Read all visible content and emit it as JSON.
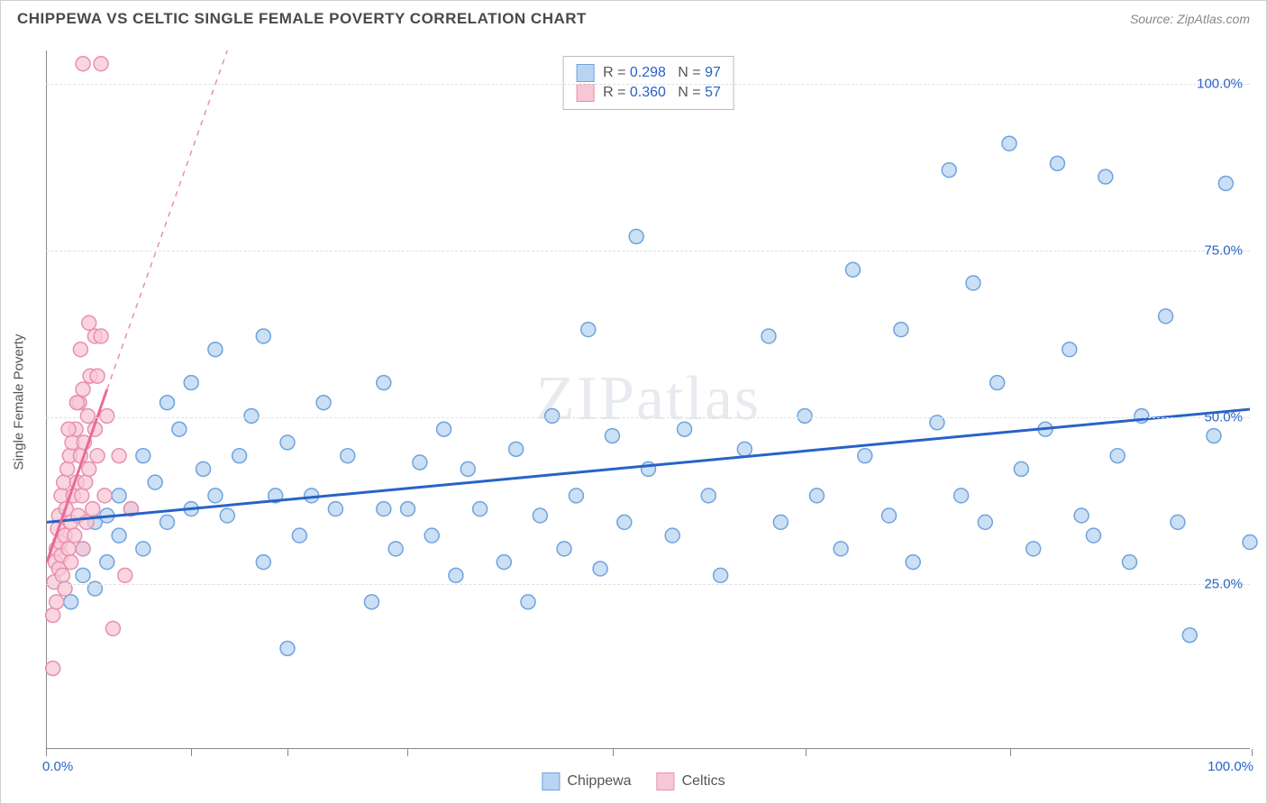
{
  "header": {
    "title": "CHIPPEWA VS CELTIC SINGLE FEMALE POVERTY CORRELATION CHART",
    "source": "Source: ZipAtlas.com"
  },
  "chart": {
    "type": "scatter",
    "y_axis_label": "Single Female Poverty",
    "watermark": "ZIPatlas",
    "xlim": [
      0,
      100
    ],
    "ylim": [
      0,
      105
    ],
    "x_tick_positions": [
      0,
      12,
      20,
      30,
      47,
      63,
      80,
      100
    ],
    "x_label_start": "0.0%",
    "x_label_end": "100.0%",
    "x_label_color": "#2862c7",
    "y_gridlines": [
      {
        "value": 25,
        "label": "25.0%"
      },
      {
        "value": 50,
        "label": "50.0%"
      },
      {
        "value": 75,
        "label": "75.0%"
      },
      {
        "value": 100,
        "label": "100.0%"
      }
    ],
    "y_label_color": "#2862c7",
    "grid_color": "#e0e0e0",
    "background_color": "#ffffff",
    "axis_color": "#888888",
    "marker_radius": 8,
    "marker_stroke_width": 1.5,
    "series": [
      {
        "name": "Chippewa",
        "fill": "#b9d4f2",
        "stroke": "#6fa3dc",
        "swatch_fill": "#b9d4f2",
        "swatch_stroke": "#6fa3dc",
        "r_value": "0.298",
        "n_value": "97",
        "trend": {
          "x1": 0,
          "y1": 34,
          "x2": 100,
          "y2": 51,
          "stroke": "#2862c7",
          "width": 3,
          "dash": "none",
          "extend_dash": null
        },
        "points": [
          [
            2,
            22
          ],
          [
            3,
            26
          ],
          [
            3,
            30
          ],
          [
            4,
            24
          ],
          [
            4,
            34
          ],
          [
            5,
            28
          ],
          [
            5,
            35
          ],
          [
            6,
            32
          ],
          [
            6,
            38
          ],
          [
            7,
            36
          ],
          [
            8,
            30
          ],
          [
            8,
            44
          ],
          [
            9,
            40
          ],
          [
            10,
            34
          ],
          [
            10,
            52
          ],
          [
            11,
            48
          ],
          [
            12,
            36
          ],
          [
            12,
            55
          ],
          [
            13,
            42
          ],
          [
            14,
            38
          ],
          [
            14,
            60
          ],
          [
            15,
            35
          ],
          [
            16,
            44
          ],
          [
            17,
            50
          ],
          [
            18,
            28
          ],
          [
            18,
            62
          ],
          [
            19,
            38
          ],
          [
            20,
            15
          ],
          [
            20,
            46
          ],
          [
            21,
            32
          ],
          [
            22,
            38
          ],
          [
            23,
            52
          ],
          [
            24,
            36
          ],
          [
            25,
            44
          ],
          [
            27,
            22
          ],
          [
            28,
            36
          ],
          [
            28,
            55
          ],
          [
            29,
            30
          ],
          [
            30,
            36
          ],
          [
            31,
            43
          ],
          [
            32,
            32
          ],
          [
            33,
            48
          ],
          [
            34,
            26
          ],
          [
            35,
            42
          ],
          [
            36,
            36
          ],
          [
            38,
            28
          ],
          [
            39,
            45
          ],
          [
            40,
            22
          ],
          [
            41,
            35
          ],
          [
            42,
            50
          ],
          [
            43,
            30
          ],
          [
            44,
            38
          ],
          [
            45,
            63
          ],
          [
            46,
            27
          ],
          [
            47,
            47
          ],
          [
            48,
            34
          ],
          [
            49,
            77
          ],
          [
            50,
            42
          ],
          [
            52,
            32
          ],
          [
            53,
            48
          ],
          [
            55,
            38
          ],
          [
            56,
            26
          ],
          [
            58,
            45
          ],
          [
            60,
            62
          ],
          [
            61,
            34
          ],
          [
            63,
            50
          ],
          [
            64,
            38
          ],
          [
            66,
            30
          ],
          [
            67,
            72
          ],
          [
            68,
            44
          ],
          [
            70,
            35
          ],
          [
            71,
            63
          ],
          [
            72,
            28
          ],
          [
            74,
            49
          ],
          [
            75,
            87
          ],
          [
            76,
            38
          ],
          [
            77,
            70
          ],
          [
            78,
            34
          ],
          [
            79,
            55
          ],
          [
            80,
            91
          ],
          [
            81,
            42
          ],
          [
            82,
            30
          ],
          [
            83,
            48
          ],
          [
            84,
            88
          ],
          [
            85,
            60
          ],
          [
            86,
            35
          ],
          [
            87,
            32
          ],
          [
            88,
            86
          ],
          [
            89,
            44
          ],
          [
            90,
            28
          ],
          [
            91,
            50
          ],
          [
            93,
            65
          ],
          [
            94,
            34
          ],
          [
            95,
            17
          ],
          [
            97,
            47
          ],
          [
            98,
            85
          ],
          [
            100,
            31
          ]
        ]
      },
      {
        "name": "Celtics",
        "fill": "#f7c7d6",
        "stroke": "#e88fb0",
        "swatch_fill": "#f7c7d6",
        "swatch_stroke": "#e88fb0",
        "r_value": "0.360",
        "n_value": "57",
        "trend": {
          "x1": 0,
          "y1": 28,
          "x2": 5,
          "y2": 54,
          "stroke": "#e86a9a",
          "width": 3,
          "dash": "none",
          "extend_dash": {
            "x1": 5,
            "y1": 54,
            "x2": 15,
            "y2": 105,
            "stroke": "#e88fb0",
            "width": 1.5
          }
        },
        "points": [
          [
            0.5,
            12
          ],
          [
            0.5,
            20
          ],
          [
            0.6,
            25
          ],
          [
            0.7,
            28
          ],
          [
            0.8,
            30
          ],
          [
            0.8,
            22
          ],
          [
            0.9,
            33
          ],
          [
            1.0,
            27
          ],
          [
            1.0,
            35
          ],
          [
            1.1,
            31
          ],
          [
            1.2,
            29
          ],
          [
            1.2,
            38
          ],
          [
            1.3,
            26
          ],
          [
            1.4,
            40
          ],
          [
            1.5,
            32
          ],
          [
            1.5,
            24
          ],
          [
            1.6,
            36
          ],
          [
            1.7,
            42
          ],
          [
            1.8,
            30
          ],
          [
            1.9,
            44
          ],
          [
            2.0,
            34
          ],
          [
            2.0,
            28
          ],
          [
            2.1,
            46
          ],
          [
            2.2,
            38
          ],
          [
            2.3,
            32
          ],
          [
            2.4,
            48
          ],
          [
            2.5,
            40
          ],
          [
            2.6,
            35
          ],
          [
            2.7,
            52
          ],
          [
            2.8,
            44
          ],
          [
            2.9,
            38
          ],
          [
            3.0,
            30
          ],
          [
            3.0,
            54
          ],
          [
            3.1,
            46
          ],
          [
            3.2,
            40
          ],
          [
            3.3,
            34
          ],
          [
            3.4,
            50
          ],
          [
            3.5,
            42
          ],
          [
            3.6,
            56
          ],
          [
            3.8,
            36
          ],
          [
            4.0,
            48
          ],
          [
            4.0,
            62
          ],
          [
            4.2,
            44
          ],
          [
            4.5,
            62
          ],
          [
            4.8,
            38
          ],
          [
            5.0,
            50
          ],
          [
            5.5,
            18
          ],
          [
            6.0,
            44
          ],
          [
            6.5,
            26
          ],
          [
            7.0,
            36
          ],
          [
            3.0,
            103
          ],
          [
            4.5,
            103
          ],
          [
            2.8,
            60
          ],
          [
            3.5,
            64
          ],
          [
            1.8,
            48
          ],
          [
            2.5,
            52
          ],
          [
            4.2,
            56
          ]
        ]
      }
    ],
    "stats_box": {
      "r_label": "R =",
      "n_label": "N =",
      "value_color": "#2862c7",
      "label_color": "#555555"
    },
    "legend_label_color": "#555555"
  }
}
